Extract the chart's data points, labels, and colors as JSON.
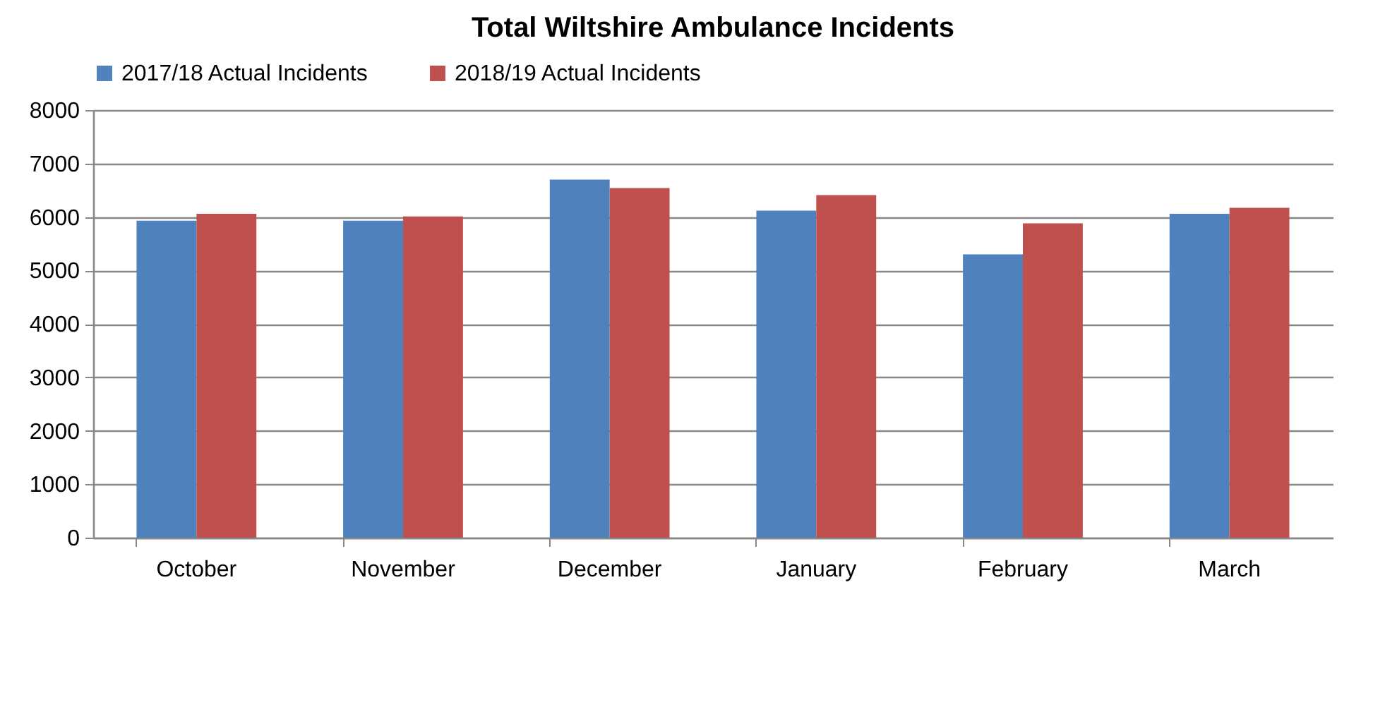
{
  "chart_data": {
    "type": "bar",
    "title": "Total Wiltshire Ambulance Incidents",
    "categories": [
      "October",
      "November",
      "December",
      "January",
      "February",
      "March"
    ],
    "series": [
      {
        "name": "2017/18 Actual Incidents",
        "color": "#4f81bd",
        "values": [
          5930,
          5930,
          6700,
          6120,
          5300,
          6060
        ]
      },
      {
        "name": "2018/19 Actual Incidents",
        "color": "#c0504d",
        "values": [
          6060,
          6010,
          6540,
          6410,
          5880,
          6170
        ]
      }
    ],
    "ylim": [
      0,
      8000
    ],
    "yticks": [
      0,
      1000,
      2000,
      3000,
      4000,
      5000,
      6000,
      7000,
      8000
    ],
    "grid": "y",
    "legend": "top"
  }
}
